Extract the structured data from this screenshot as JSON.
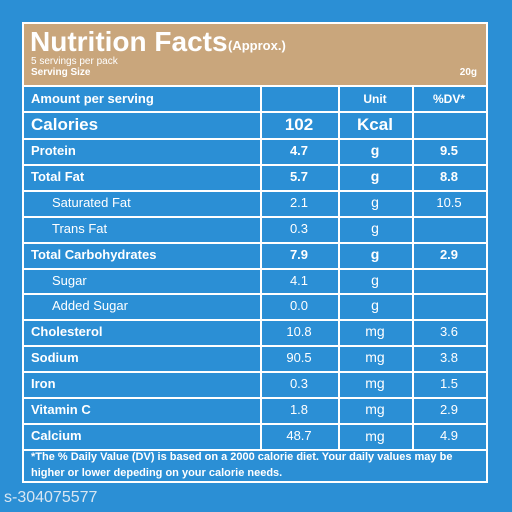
{
  "header": {
    "title": "Nutrition Facts",
    "title_note": "(Approx.)",
    "servings": "5 servings per pack",
    "serving_size_label": "Serving Size",
    "serving_size": "20g"
  },
  "table": {
    "columns": [
      "Amount per serving",
      "Unit",
      "%DV*"
    ],
    "rows": [
      {
        "name": "Calories",
        "amount": "102",
        "unit": "Kcal"
      },
      {
        "name": "Protein",
        "amount": "4.7",
        "unit": "g",
        "dv": "9.5"
      },
      {
        "name": "Total Fat",
        "amount": "5.7",
        "unit": "g",
        "dv": "8.8"
      },
      {
        "name": "Saturated Fat",
        "amount": "2.1",
        "unit": "g",
        "dv": "10.5"
      },
      {
        "name": "Trans Fat",
        "amount": "0.3",
        "unit": "g"
      },
      {
        "name": "Total Carbohydrates",
        "amount": "7.9",
        "unit": "g",
        "dv": "2.9"
      },
      {
        "name": "Sugar",
        "amount": "4.1",
        "unit": "g"
      },
      {
        "name": "Added Sugar",
        "amount": "0.0",
        "unit": "g"
      },
      {
        "name": "Cholesterol",
        "amount": "10.8",
        "unit": "mg",
        "dv": "3.6"
      },
      {
        "name": "Sodium",
        "amount": "90.5",
        "unit": "mg",
        "dv": "3.8"
      },
      {
        "name": "Iron",
        "amount": "0.3",
        "unit": "mg",
        "dv": "1.5"
      },
      {
        "name": "Vitamin C",
        "amount": "1.8",
        "unit": "mg",
        "dv": "2.9"
      },
      {
        "name": "Calcium",
        "amount": "48.7",
        "unit": "mg",
        "dv": "4.9"
      }
    ]
  },
  "footnote": "*The % Daily Value (DV) is based on a 2000 calorie diet. Your daily values may be higher or lower depeding on your calorie needs.",
  "watermark": "s-304075577"
}
